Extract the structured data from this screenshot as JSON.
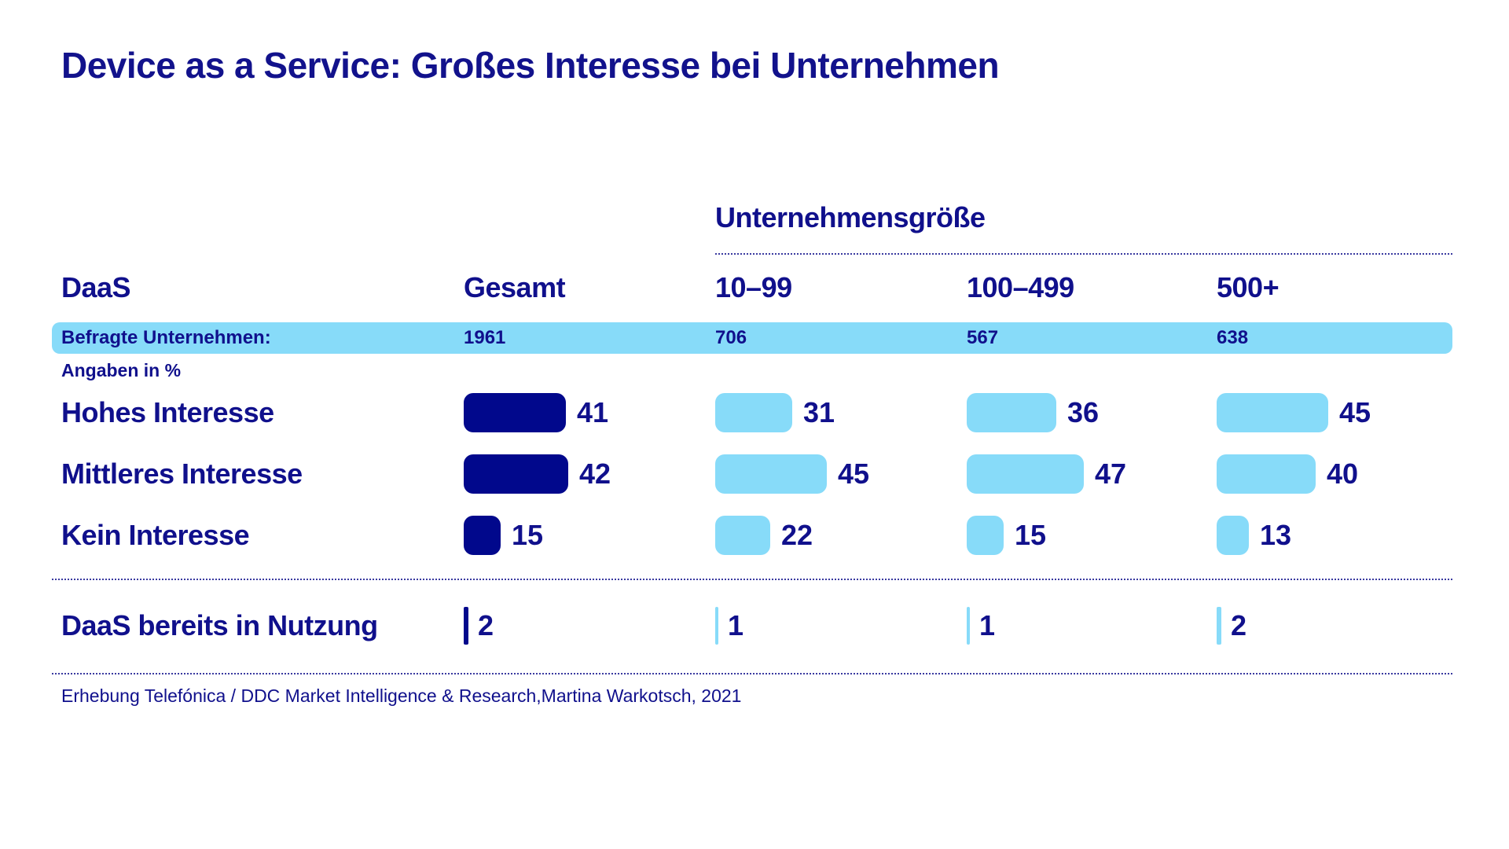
{
  "title": "Device as a Service: Großes Interesse bei Unternehmen",
  "colors": {
    "navy_text": "#10108C",
    "navy_bar": "#01088C",
    "light_blue": "#87DBF9",
    "dotted_line": "#3A3AA0"
  },
  "table": {
    "group_header": "Unternehmensgröße",
    "row_header_label": "DaaS",
    "columns": [
      {
        "label": "Gesamt"
      },
      {
        "label": "10–99"
      },
      {
        "label": "100–499"
      },
      {
        "label": "500+"
      }
    ],
    "surveyed_label": "Befragte Unternehmen:",
    "surveyed": [
      "1961",
      "706",
      "567",
      "638"
    ],
    "unit_note": "Angaben in %",
    "rows": [
      {
        "label": "Hohes Interesse",
        "values": [
          41,
          31,
          36,
          45
        ]
      },
      {
        "label": "Mittleres Interesse",
        "values": [
          42,
          45,
          47,
          40
        ]
      },
      {
        "label": "Kein Interesse",
        "values": [
          15,
          22,
          15,
          13
        ]
      }
    ],
    "usage_row": {
      "label": "DaaS bereits in Nutzung",
      "values": [
        2,
        1,
        1,
        2
      ]
    }
  },
  "footer": "Erhebung Telefónica / DDC Market Intelligence & Research,Martina Warkotsch, 2021",
  "chart_data": {
    "type": "bar",
    "title": "Device as a Service: Großes Interesse bei Unternehmen",
    "group_axis_label": "Unternehmensgröße",
    "categories": [
      "Gesamt",
      "10–99",
      "100–499",
      "500+"
    ],
    "surveyed_companies": {
      "label": "Befragte Unternehmen:",
      "values": [
        1961,
        706,
        567,
        638
      ]
    },
    "unit": "Angaben in %",
    "series": [
      {
        "name": "Hohes Interesse",
        "values": [
          41,
          31,
          36,
          45
        ]
      },
      {
        "name": "Mittleres Interesse",
        "values": [
          42,
          45,
          47,
          40
        ]
      },
      {
        "name": "Kein Interesse",
        "values": [
          15,
          22,
          15,
          13
        ]
      },
      {
        "name": "DaaS bereits in Nutzung",
        "values": [
          2,
          1,
          1,
          2
        ]
      }
    ],
    "value_range": [
      0,
      50
    ],
    "orientation": "horizontal",
    "legend": "none",
    "grid": false,
    "source": "Erhebung Telefónica / DDC Market Intelligence & Research,Martina Warkotsch, 2021"
  }
}
